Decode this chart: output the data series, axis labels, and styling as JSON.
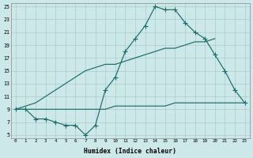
{
  "xlabel": "Humidex (Indice chaleur)",
  "xlim": [
    -0.5,
    23.5
  ],
  "ylim": [
    4.5,
    25.5
  ],
  "xticks": [
    0,
    1,
    2,
    3,
    4,
    5,
    6,
    7,
    8,
    9,
    10,
    11,
    12,
    13,
    14,
    15,
    16,
    17,
    18,
    19,
    20,
    21,
    22,
    23
  ],
  "yticks": [
    5,
    7,
    9,
    11,
    13,
    15,
    17,
    19,
    21,
    23,
    25
  ],
  "bg_color": "#cce8e8",
  "grid_color": "#aacccc",
  "line_color": "#1e6b6b",
  "line1_x": [
    0,
    1,
    2,
    3,
    4,
    5,
    6,
    7,
    8,
    9,
    10,
    11,
    12,
    13,
    14,
    15,
    16,
    17,
    18,
    19,
    20,
    21,
    22,
    23
  ],
  "line1_y": [
    9,
    9,
    7.5,
    7.5,
    7,
    6.5,
    6.5,
    5,
    6.5,
    12,
    14,
    18,
    20,
    22,
    25,
    24.5,
    24.5,
    22.5,
    21,
    20,
    17.5,
    15,
    12,
    10
  ],
  "line2_x": [
    0,
    2,
    3,
    4,
    5,
    6,
    7,
    8,
    9,
    10,
    11,
    12,
    13,
    14,
    15,
    16,
    17,
    18,
    19,
    20
  ],
  "line2_y": [
    9,
    10,
    11,
    12,
    13,
    14,
    15,
    15.5,
    16,
    16,
    16.5,
    17,
    17.5,
    18,
    18.5,
    18.5,
    19,
    19.5,
    19.5,
    20
  ],
  "line3_x": [
    0,
    1,
    2,
    3,
    4,
    5,
    6,
    7,
    8,
    9,
    10,
    11,
    12,
    13,
    14,
    15,
    16,
    17,
    18,
    19,
    20,
    21,
    22,
    23
  ],
  "line3_y": [
    9,
    9,
    9,
    9,
    9,
    9,
    9,
    9,
    9,
    9,
    9.5,
    9.5,
    9.5,
    9.5,
    9.5,
    9.5,
    10,
    10,
    10,
    10,
    10,
    10,
    10,
    10
  ]
}
